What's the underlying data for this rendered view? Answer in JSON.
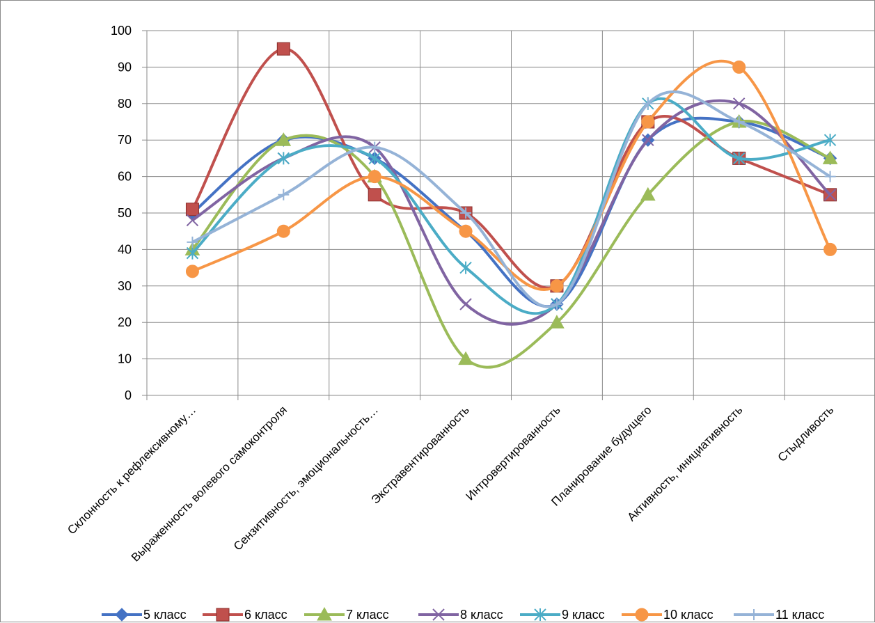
{
  "chart_data": {
    "type": "line",
    "smooth": true,
    "categories": [
      "Склонность к рефлексивному…",
      "Выраженность волевого самоконтроля",
      "Сензитивность, эмоциональность…",
      "Экстравентированность",
      "Интровертированность",
      "Планирование будущего",
      "Активность, инициативность",
      "Стыдливость"
    ],
    "ylim": [
      0,
      100
    ],
    "yticks": [
      0,
      10,
      20,
      30,
      40,
      50,
      60,
      70,
      80,
      90,
      100
    ],
    "grid": true,
    "legend_position": "bottom",
    "series": [
      {
        "name": "5 класс",
        "color": "#4472C4",
        "marker": "diamond",
        "values": [
          50,
          70,
          65,
          45,
          25,
          70,
          75,
          65
        ]
      },
      {
        "name": "6 класс",
        "color": "#C0504D",
        "marker": "square",
        "values": [
          51,
          95,
          55,
          50,
          30,
          75,
          65,
          55
        ]
      },
      {
        "name": "7 класс",
        "color": "#9BBB59",
        "marker": "triangle",
        "values": [
          40,
          70,
          60,
          10,
          20,
          55,
          75,
          65
        ]
      },
      {
        "name": "8 класс",
        "color": "#8064A2",
        "marker": "x",
        "values": [
          48,
          65,
          68,
          25,
          25,
          70,
          80,
          55
        ]
      },
      {
        "name": "9 класс",
        "color": "#4BACC6",
        "marker": "star",
        "values": [
          39,
          65,
          65,
          35,
          25,
          80,
          65,
          70
        ]
      },
      {
        "name": "10 класс",
        "color": "#F79646",
        "marker": "circle",
        "values": [
          34,
          45,
          60,
          45,
          30,
          75,
          90,
          40
        ]
      },
      {
        "name": "11 класс",
        "color": "#95B3D7",
        "marker": "plus",
        "values": [
          42,
          55,
          68,
          50,
          25,
          80,
          75,
          60
        ]
      }
    ]
  }
}
